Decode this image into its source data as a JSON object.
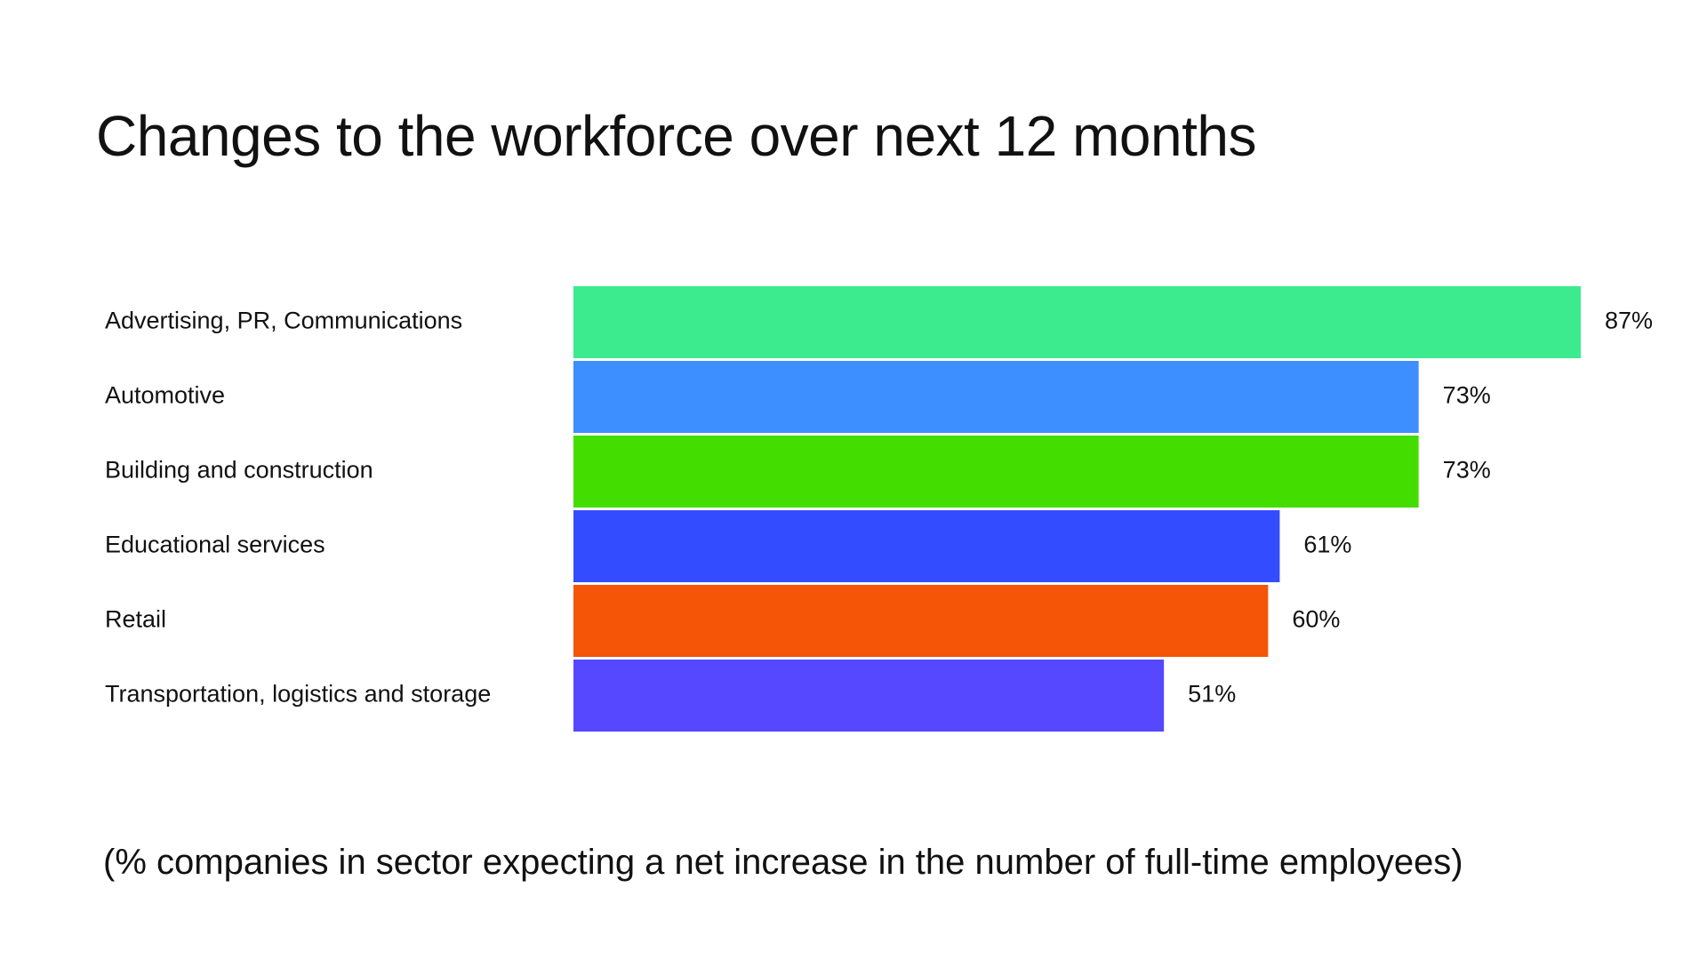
{
  "chart_data": {
    "type": "bar",
    "orientation": "horizontal",
    "title": "Changes to the workforce over next 12 months",
    "subtitle": "(% companies in sector expecting a net increase in the number of full-time employees)",
    "categories": [
      "Advertising, PR, Communications",
      "Automotive",
      "Building and construction",
      "Educational services",
      "Retail",
      "Transportation, logistics and storage"
    ],
    "values": [
      87,
      73,
      73,
      61,
      60,
      51
    ],
    "value_labels": [
      "87%",
      "73%",
      "73%",
      "61%",
      "60%",
      "51%"
    ],
    "colors": [
      "#3deb8f",
      "#3d8fff",
      "#44dd00",
      "#344cff",
      "#f55507",
      "#5648ff"
    ],
    "unit": "%",
    "xlim": [
      0,
      100
    ],
    "grid": false,
    "legend": "none"
  }
}
